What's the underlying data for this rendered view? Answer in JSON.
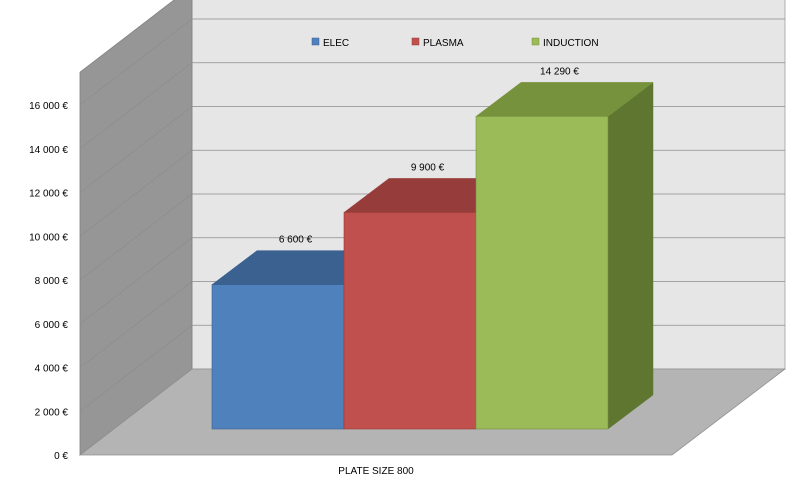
{
  "chart_data": {
    "type": "bar",
    "categories": [
      "PLATE SIZE 800"
    ],
    "series": [
      {
        "name": "ELEC",
        "values": [
          6600
        ],
        "color": "#4F81BD",
        "top_color": "#3A6190",
        "side_color": "#2C4A70",
        "label": "6 600 €"
      },
      {
        "name": "PLASMA",
        "values": [
          9900
        ],
        "color": "#C0504D",
        "top_color": "#963C3A",
        "side_color": "#7A2E2C",
        "label": "9 900 €"
      },
      {
        "name": "INDUCTION",
        "values": [
          14290
        ],
        "color": "#9BBB59",
        "top_color": "#76923C",
        "side_color": "#5F7631",
        "label": "14 290 €"
      }
    ],
    "ylim": [
      0,
      16000
    ],
    "yticks": [
      0,
      2000,
      4000,
      6000,
      8000,
      10000,
      12000,
      14000,
      16000
    ],
    "ytick_labels": [
      "0 €",
      "2 000 €",
      "4 000 €",
      "6 000 €",
      "8 000 €",
      "10 000 €",
      "12 000 €",
      "14 000 €",
      "16 000 €"
    ],
    "grid": true,
    "legend_position": "top",
    "three_d": true,
    "colors": {
      "back_wall": "#E6E6E6",
      "side_wall": "#969696",
      "floor": "#B4B4B4",
      "gridline": "#8C8C8C"
    }
  }
}
